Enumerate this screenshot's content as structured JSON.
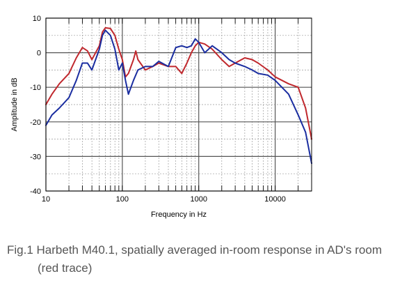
{
  "chart_data": {
    "type": "line",
    "title": "",
    "xlabel": "Frequency in Hz",
    "ylabel": "Amplitude in dB",
    "xscale": "log",
    "xlim": [
      10,
      30000
    ],
    "ylim": [
      -40,
      10
    ],
    "xticks": [
      10,
      100,
      1000,
      10000
    ],
    "xtick_labels": [
      "10",
      "100",
      "1000",
      "10000"
    ],
    "yticks": [
      10,
      0,
      -10,
      -20,
      -30,
      -40
    ],
    "ytick_labels": [
      "10",
      "0",
      "-10",
      "-20",
      "-30",
      "-40"
    ],
    "grid": true,
    "series": [
      {
        "color": "#c0282d",
        "points": [
          [
            10,
            -15
          ],
          [
            12,
            -12
          ],
          [
            15,
            -9
          ],
          [
            20,
            -6
          ],
          [
            25,
            -1.5
          ],
          [
            30,
            1.5
          ],
          [
            35,
            0.5
          ],
          [
            40,
            -2
          ],
          [
            50,
            2
          ],
          [
            55,
            6
          ],
          [
            60,
            7.2
          ],
          [
            70,
            7
          ],
          [
            80,
            5
          ],
          [
            90,
            1
          ],
          [
            100,
            -2
          ],
          [
            110,
            -7
          ],
          [
            120,
            -6
          ],
          [
            140,
            -2
          ],
          [
            150,
            0.5
          ],
          [
            160,
            -2
          ],
          [
            200,
            -5
          ],
          [
            250,
            -4
          ],
          [
            300,
            -3
          ],
          [
            400,
            -4
          ],
          [
            500,
            -4
          ],
          [
            600,
            -6
          ],
          [
            700,
            -3
          ],
          [
            800,
            0
          ],
          [
            900,
            2
          ],
          [
            1000,
            3
          ],
          [
            1200,
            2.5
          ],
          [
            1500,
            1
          ],
          [
            2000,
            -2
          ],
          [
            2500,
            -4
          ],
          [
            3000,
            -3
          ],
          [
            4000,
            -1.5
          ],
          [
            5000,
            -2
          ],
          [
            6000,
            -3
          ],
          [
            8000,
            -5
          ],
          [
            10000,
            -7
          ],
          [
            15000,
            -9
          ],
          [
            20000,
            -10
          ],
          [
            25000,
            -16
          ],
          [
            30000,
            -25
          ]
        ]
      },
      {
        "color": "#1a2da0",
        "points": [
          [
            10,
            -21
          ],
          [
            12,
            -18
          ],
          [
            15,
            -16
          ],
          [
            20,
            -13
          ],
          [
            25,
            -8
          ],
          [
            30,
            -3
          ],
          [
            35,
            -3
          ],
          [
            40,
            -5
          ],
          [
            50,
            1
          ],
          [
            55,
            5
          ],
          [
            60,
            6.5
          ],
          [
            70,
            5
          ],
          [
            80,
            1
          ],
          [
            90,
            -5
          ],
          [
            100,
            -3
          ],
          [
            110,
            -8
          ],
          [
            120,
            -12
          ],
          [
            140,
            -8
          ],
          [
            160,
            -5
          ],
          [
            200,
            -4
          ],
          [
            250,
            -4
          ],
          [
            300,
            -2.5
          ],
          [
            400,
            -4
          ],
          [
            500,
            1.5
          ],
          [
            600,
            2
          ],
          [
            700,
            1.5
          ],
          [
            800,
            2
          ],
          [
            900,
            4
          ],
          [
            1000,
            3
          ],
          [
            1200,
            0
          ],
          [
            1500,
            2
          ],
          [
            2000,
            0
          ],
          [
            2500,
            -2
          ],
          [
            3000,
            -3
          ],
          [
            4000,
            -4
          ],
          [
            5000,
            -5
          ],
          [
            6000,
            -6
          ],
          [
            8000,
            -6.5
          ],
          [
            10000,
            -8
          ],
          [
            15000,
            -12
          ],
          [
            20000,
            -18
          ],
          [
            25000,
            -23
          ],
          [
            30000,
            -32
          ]
        ]
      }
    ]
  },
  "caption": {
    "line1": "Fig.1 Harbeth M40.1, spatially averaged in-room response in AD's room",
    "line2": "(red trace)"
  }
}
